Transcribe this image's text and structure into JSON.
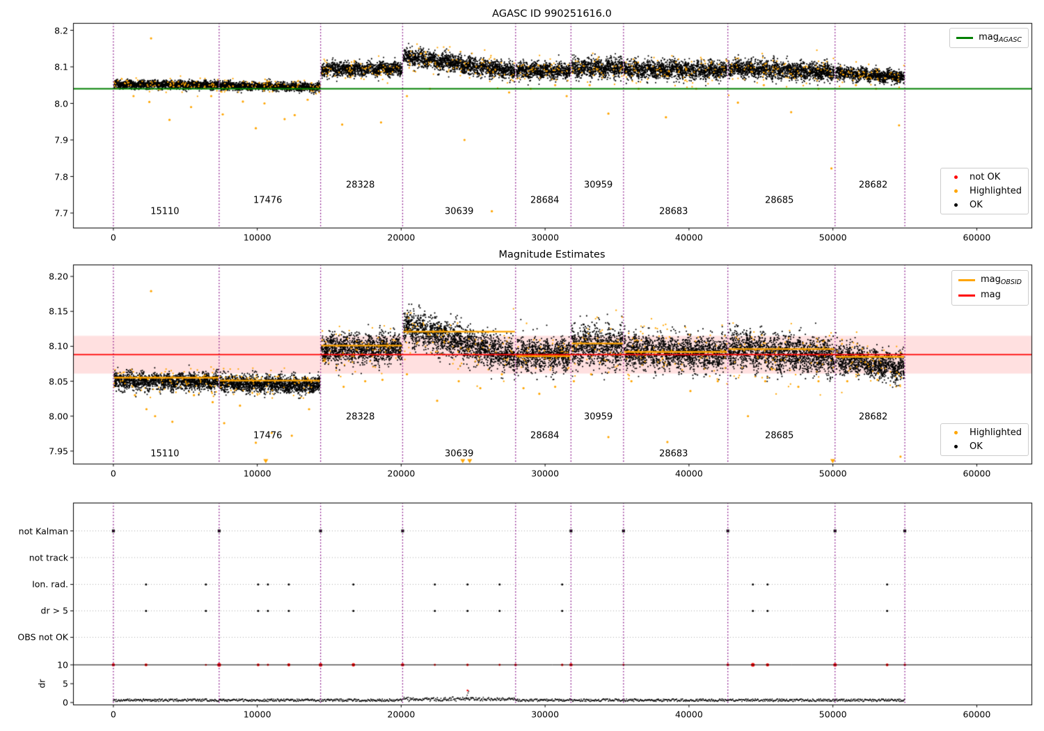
{
  "colors": {
    "background": "#ffffff",
    "ok": "#000000",
    "highlighted": "#FFA500",
    "not_ok": "#FF0000",
    "mag_agasc_line": "#008000",
    "mag_line": "#FF0000",
    "mag_obsid_line": "#FFA500",
    "mag_band": "rgba(255,0,0,0.12)",
    "boundary_line": "#800080",
    "grid_dotted": "#aaaaaa",
    "axis": "#000000"
  },
  "boundaries": [
    0,
    7350,
    14400,
    20100,
    27950,
    31800,
    35450,
    42700,
    50150,
    55000
  ],
  "xtick_values": [
    0,
    10000,
    20000,
    30000,
    40000,
    50000,
    60000
  ],
  "xtick_labels": [
    "0",
    "10000",
    "20000",
    "30000",
    "40000",
    "50000",
    "60000"
  ],
  "chart_data": [
    {
      "type": "scatter",
      "title": "AGASC ID 990251616.0",
      "xlim": [
        -2800,
        63800
      ],
      "ylim": [
        7.66,
        8.22
      ],
      "ytick_values": [
        7.7,
        7.8,
        7.9,
        8.0,
        8.1,
        8.2
      ],
      "ytick_labels": [
        "7.7",
        "7.8",
        "7.9",
        "8.0",
        "8.1",
        "8.2"
      ],
      "mag_agasc": 8.04,
      "legend_line": {
        "label_main": "mag",
        "label_sub": "AGASC"
      },
      "legend_points": [
        {
          "label": "not OK",
          "color_key": "not_ok"
        },
        {
          "label": "Highlighted",
          "color_key": "highlighted"
        },
        {
          "label": "OK",
          "color_key": "ok"
        }
      ],
      "segments": [
        {
          "obsid": "15110",
          "x0": 50,
          "x1": 7300,
          "mean": 8.052,
          "trend": -0.002,
          "sigma": 0.0055,
          "label_x": 3580,
          "label_y": 7.703
        },
        {
          "obsid": "17476",
          "x0": 7400,
          "x1": 14350,
          "mean": 8.049,
          "trend": -0.005,
          "sigma": 0.0055,
          "label_x": 10730,
          "label_y": 7.734
        },
        {
          "obsid": "28328",
          "x0": 14450,
          "x1": 20050,
          "mean": 8.093,
          "trend": 0.002,
          "sigma": 0.0095,
          "label_x": 17160,
          "label_y": 7.776
        },
        {
          "obsid": "30639",
          "x0": 20150,
          "x1": 27900,
          "mean": 8.128,
          "trend": -0.04,
          "sigma": 0.011,
          "label_x": 24030,
          "label_y": 7.703
        },
        {
          "obsid": "28684",
          "x0": 28000,
          "x1": 31750,
          "mean": 8.09,
          "trend": 0.0,
          "sigma": 0.011,
          "label_x": 29980,
          "label_y": 7.734
        },
        {
          "obsid": "30959",
          "x0": 31850,
          "x1": 35400,
          "mean": 8.097,
          "trend": 0.0,
          "sigma": 0.013,
          "label_x": 33700,
          "label_y": 7.776
        },
        {
          "obsid": "28683",
          "x0": 35500,
          "x1": 42650,
          "mean": 8.093,
          "trend": -0.004,
          "sigma": 0.012,
          "label_x": 38930,
          "label_y": 7.703
        },
        {
          "obsid": "28685",
          "x0": 42750,
          "x1": 50100,
          "mean": 8.097,
          "trend": -0.012,
          "sigma": 0.012,
          "label_x": 46280,
          "label_y": 7.734
        },
        {
          "obsid": "28682",
          "x0": 50200,
          "x1": 54950,
          "mean": 8.085,
          "trend": -0.014,
          "sigma": 0.009,
          "label_x": 52800,
          "label_y": 7.776
        }
      ],
      "highlighted_outliers": [
        [
          2620,
          8.178
        ],
        [
          1400,
          8.02
        ],
        [
          2500,
          8.004
        ],
        [
          3900,
          7.955
        ],
        [
          5400,
          7.99
        ],
        [
          6800,
          8.02
        ],
        [
          7600,
          7.97
        ],
        [
          9000,
          8.005
        ],
        [
          9900,
          7.932
        ],
        [
          10500,
          8.0
        ],
        [
          11900,
          7.957
        ],
        [
          12600,
          7.968
        ],
        [
          13500,
          8.01
        ],
        [
          15900,
          7.942
        ],
        [
          18600,
          7.948
        ],
        [
          20400,
          8.02
        ],
        [
          22000,
          8.04
        ],
        [
          24400,
          7.9
        ],
        [
          26300,
          7.705
        ],
        [
          27500,
          8.03
        ],
        [
          29000,
          8.04
        ],
        [
          30700,
          8.05
        ],
        [
          31500,
          8.02
        ],
        [
          33100,
          8.05
        ],
        [
          34400,
          7.972
        ],
        [
          36500,
          8.04
        ],
        [
          38400,
          7.962
        ],
        [
          40500,
          8.04
        ],
        [
          43400,
          8.002
        ],
        [
          45200,
          8.05
        ],
        [
          47100,
          7.976
        ],
        [
          49000,
          8.04
        ],
        [
          49900,
          7.822
        ],
        [
          51600,
          8.05
        ],
        [
          53000,
          8.04
        ],
        [
          54600,
          7.94
        ]
      ]
    },
    {
      "type": "scatter",
      "title": "Magnitude Estimates",
      "xlim": [
        -2800,
        63800
      ],
      "ylim": [
        7.932,
        8.217
      ],
      "ytick_values": [
        7.95,
        8.0,
        8.05,
        8.1,
        8.15,
        8.2
      ],
      "ytick_labels": [
        "7.95",
        "8.00",
        "8.05",
        "8.10",
        "8.15",
        "8.20"
      ],
      "mag": 8.088,
      "mag_band": [
        8.061,
        8.115
      ],
      "legend_lines": [
        {
          "label_main": "mag",
          "label_sub": "OBSID",
          "color_key": "mag_obsid_line"
        },
        {
          "label_main": "mag",
          "label_sub": "",
          "color_key": "mag_line"
        }
      ],
      "legend_points": [
        {
          "label": "Highlighted",
          "color_key": "highlighted"
        },
        {
          "label": "OK",
          "color_key": "ok"
        }
      ],
      "segments": [
        {
          "obsid": "15110",
          "x0": 50,
          "x1": 7300,
          "mean": 8.051,
          "trend": -0.002,
          "sigma": 0.006,
          "mag_obsid": 8.055,
          "label_x": 3580,
          "label_y": 7.946
        },
        {
          "obsid": "17476",
          "x0": 7400,
          "x1": 14350,
          "mean": 8.048,
          "trend": -0.004,
          "sigma": 0.006,
          "mag_obsid": 8.051,
          "label_x": 10730,
          "label_y": 7.972
        },
        {
          "obsid": "28328",
          "x0": 14450,
          "x1": 20050,
          "mean": 8.096,
          "trend": 0.002,
          "sigma": 0.01,
          "mag_obsid": 8.101,
          "label_x": 17160,
          "label_y": 7.999
        },
        {
          "obsid": "30639",
          "x0": 20150,
          "x1": 27900,
          "mean": 8.129,
          "trend": -0.044,
          "sigma": 0.012,
          "mag_obsid": 8.121,
          "label_x": 24030,
          "label_y": 7.946
        },
        {
          "obsid": "28684",
          "x0": 28000,
          "x1": 31750,
          "mean": 8.088,
          "trend": 0.0,
          "sigma": 0.012,
          "mag_obsid": 8.086,
          "label_x": 29980,
          "label_y": 7.972
        },
        {
          "obsid": "30959",
          "x0": 31850,
          "x1": 35400,
          "mean": 8.099,
          "trend": 0.0,
          "sigma": 0.014,
          "mag_obsid": 8.104,
          "label_x": 33700,
          "label_y": 7.999
        },
        {
          "obsid": "28683",
          "x0": 35500,
          "x1": 42650,
          "mean": 8.093,
          "trend": -0.004,
          "sigma": 0.012,
          "mag_obsid": 8.092,
          "label_x": 38930,
          "label_y": 7.946
        },
        {
          "obsid": "28685",
          "x0": 42750,
          "x1": 50100,
          "mean": 8.098,
          "trend": -0.014,
          "sigma": 0.013,
          "mag_obsid": 8.096,
          "label_x": 46280,
          "label_y": 7.972
        },
        {
          "obsid": "28682",
          "x0": 50200,
          "x1": 54950,
          "mean": 8.084,
          "trend": -0.016,
          "sigma": 0.01,
          "mag_obsid": 8.085,
          "label_x": 52800,
          "label_y": 7.999
        }
      ],
      "highlighted_outliers": [
        [
          2620,
          8.179
        ],
        [
          1500,
          8.03
        ],
        [
          2300,
          8.01
        ],
        [
          2900,
          8.0
        ],
        [
          4100,
          7.992
        ],
        [
          5600,
          8.03
        ],
        [
          6900,
          8.02
        ],
        [
          7700,
          7.99
        ],
        [
          8800,
          8.015
        ],
        [
          9900,
          7.962
        ],
        [
          11000,
          7.976
        ],
        [
          12400,
          7.972
        ],
        [
          13600,
          8.01
        ],
        [
          16000,
          8.042
        ],
        [
          17500,
          8.05
        ],
        [
          18700,
          8.052
        ],
        [
          20400,
          8.06
        ],
        [
          22500,
          8.022
        ],
        [
          24000,
          8.05
        ],
        [
          25500,
          8.04
        ],
        [
          27000,
          8.06
        ],
        [
          28500,
          8.04
        ],
        [
          29600,
          8.032
        ],
        [
          30700,
          8.042
        ],
        [
          32000,
          8.05
        ],
        [
          33200,
          8.06
        ],
        [
          34400,
          7.97
        ],
        [
          36000,
          8.05
        ],
        [
          38500,
          7.963
        ],
        [
          40100,
          8.036
        ],
        [
          42000,
          8.05
        ],
        [
          44100,
          8.0
        ],
        [
          45300,
          8.05
        ],
        [
          47600,
          8.042
        ],
        [
          49000,
          8.05
        ],
        [
          51000,
          8.05
        ],
        [
          53100,
          8.052
        ],
        [
          54700,
          7.942
        ]
      ],
      "clipped_low_x": [
        10590,
        24280,
        24760,
        49990
      ]
    },
    {
      "type": "flags",
      "categories": [
        "not Kalman",
        "not track",
        "Ion. rad.",
        "dr > 5",
        "OBS not OK"
      ],
      "dr_axis": {
        "label": "dr",
        "ticks": [
          10,
          5,
          0
        ],
        "tick_labels": [
          "10",
          "5",
          "0"
        ]
      },
      "xlim": [
        -2800,
        63800
      ],
      "not_kalman_x": [
        0,
        7350,
        14400,
        20100,
        31800,
        35450,
        42700,
        50150,
        55000
      ],
      "not_track_x": [],
      "ion_rad_x": [
        2270,
        6430,
        10060,
        10740,
        12190,
        16680,
        22340,
        24610,
        26840,
        31190,
        44440,
        45460,
        53770
      ],
      "dr_gt5_x": [
        2270,
        6430,
        10060,
        10740,
        12190,
        16680,
        22340,
        24610,
        26840,
        31190,
        44440,
        45460,
        53770
      ],
      "obs_not_ok_x": [],
      "dr_threshold_line": 10,
      "dr_red": [
        [
          0,
          10
        ],
        [
          2270,
          10
        ],
        [
          6430,
          10
        ],
        [
          7350,
          10
        ],
        [
          10060,
          10
        ],
        [
          10740,
          10
        ],
        [
          12190,
          10
        ],
        [
          14400,
          10
        ],
        [
          16680,
          10
        ],
        [
          20100,
          10
        ],
        [
          22340,
          10
        ],
        [
          24610,
          10
        ],
        [
          26840,
          10
        ],
        [
          27950,
          10
        ],
        [
          31190,
          10
        ],
        [
          31800,
          10
        ],
        [
          35450,
          10
        ],
        [
          42700,
          10
        ],
        [
          44440,
          10
        ],
        [
          45460,
          10
        ],
        [
          50150,
          10
        ],
        [
          53770,
          10
        ],
        [
          55000,
          10
        ],
        [
          24610,
          3.2
        ]
      ],
      "dr_noise": {
        "x0": 0,
        "x1": 55000,
        "base": 0.3,
        "amp": 0.65,
        "bump_range": [
          20100,
          27950
        ],
        "bump": 0.55,
        "spike": {
          "x": 24600,
          "v": 3.0
        }
      }
    }
  ]
}
